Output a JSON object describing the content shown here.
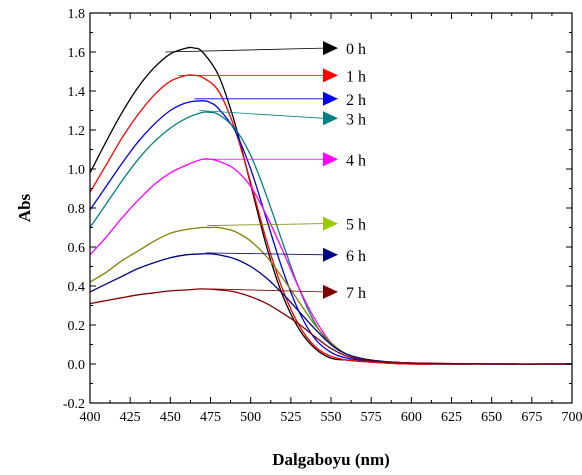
{
  "chart_data": {
    "type": "line",
    "title": "",
    "xlabel": "Dalgaboyu (nm)",
    "ylabel": "Abs",
    "xlim": [
      400,
      700
    ],
    "ylim": [
      -0.2,
      1.8
    ],
    "xticks": [
      "400",
      "425",
      "450",
      "475",
      "500",
      "525",
      "550",
      "575",
      "600",
      "625",
      "650",
      "675",
      "700"
    ],
    "yticks": [
      "-0.2",
      "0.0",
      "0.2",
      "0.4",
      "0.6",
      "0.8",
      "1.0",
      "1.2",
      "1.4",
      "1.6",
      "1.8"
    ],
    "grid": false,
    "series": [
      {
        "name": "0 h",
        "color": "#000000",
        "points": [
          [
            400,
            0.98
          ],
          [
            410,
            1.14
          ],
          [
            420,
            1.29
          ],
          [
            430,
            1.42
          ],
          [
            440,
            1.52
          ],
          [
            450,
            1.59
          ],
          [
            460,
            1.62
          ],
          [
            465,
            1.62
          ],
          [
            470,
            1.6
          ],
          [
            480,
            1.48
          ],
          [
            490,
            1.24
          ],
          [
            500,
            0.92
          ],
          [
            510,
            0.6
          ],
          [
            520,
            0.35
          ],
          [
            530,
            0.18
          ],
          [
            540,
            0.08
          ],
          [
            550,
            0.03
          ],
          [
            560,
            0.02
          ],
          [
            575,
            0.01
          ],
          [
            600,
            0.0
          ],
          [
            650,
            0.0
          ],
          [
            700,
            0.0
          ]
        ],
        "legend_anchor": [
          447,
          1.6
        ]
      },
      {
        "name": "1 h",
        "color": "#ff0000",
        "points": [
          [
            400,
            0.88
          ],
          [
            410,
            1.02
          ],
          [
            420,
            1.16
          ],
          [
            430,
            1.28
          ],
          [
            440,
            1.38
          ],
          [
            450,
            1.45
          ],
          [
            460,
            1.48
          ],
          [
            465,
            1.48
          ],
          [
            470,
            1.47
          ],
          [
            480,
            1.4
          ],
          [
            490,
            1.21
          ],
          [
            500,
            0.93
          ],
          [
            510,
            0.63
          ],
          [
            520,
            0.38
          ],
          [
            530,
            0.2
          ],
          [
            540,
            0.09
          ],
          [
            550,
            0.04
          ],
          [
            560,
            0.02
          ],
          [
            575,
            0.01
          ],
          [
            600,
            0.0
          ],
          [
            650,
            0.0
          ],
          [
            700,
            0.0
          ]
        ],
        "legend_anchor": [
          455,
          1.48
        ]
      },
      {
        "name": "2 h",
        "color": "#0000ee",
        "points": [
          [
            400,
            0.79
          ],
          [
            410,
            0.91
          ],
          [
            420,
            1.03
          ],
          [
            430,
            1.14
          ],
          [
            440,
            1.23
          ],
          [
            450,
            1.3
          ],
          [
            460,
            1.34
          ],
          [
            470,
            1.35
          ],
          [
            475,
            1.34
          ],
          [
            480,
            1.31
          ],
          [
            490,
            1.2
          ],
          [
            500,
            1.0
          ],
          [
            510,
            0.74
          ],
          [
            520,
            0.48
          ],
          [
            530,
            0.27
          ],
          [
            540,
            0.13
          ],
          [
            550,
            0.06
          ],
          [
            560,
            0.03
          ],
          [
            575,
            0.015
          ],
          [
            600,
            0.005
          ],
          [
            650,
            0.0
          ],
          [
            700,
            0.0
          ]
        ],
        "legend_anchor": [
          465,
          1.36
        ]
      },
      {
        "name": "3 h",
        "color": "#008080",
        "points": [
          [
            400,
            0.7
          ],
          [
            410,
            0.82
          ],
          [
            420,
            0.94
          ],
          [
            430,
            1.05
          ],
          [
            440,
            1.14
          ],
          [
            450,
            1.21
          ],
          [
            460,
            1.26
          ],
          [
            470,
            1.29
          ],
          [
            475,
            1.29
          ],
          [
            480,
            1.28
          ],
          [
            490,
            1.21
          ],
          [
            500,
            1.07
          ],
          [
            510,
            0.86
          ],
          [
            520,
            0.62
          ],
          [
            530,
            0.39
          ],
          [
            540,
            0.21
          ],
          [
            550,
            0.1
          ],
          [
            560,
            0.05
          ],
          [
            575,
            0.02
          ],
          [
            600,
            0.005
          ],
          [
            650,
            0.0
          ],
          [
            700,
            0.0
          ]
        ],
        "legend_anchor": [
          468,
          1.3
        ]
      },
      {
        "name": "4 h",
        "color": "#ff00ff",
        "points": [
          [
            400,
            0.56
          ],
          [
            410,
            0.65
          ],
          [
            420,
            0.75
          ],
          [
            430,
            0.84
          ],
          [
            440,
            0.92
          ],
          [
            450,
            0.98
          ],
          [
            460,
            1.02
          ],
          [
            470,
            1.05
          ],
          [
            475,
            1.05
          ],
          [
            480,
            1.04
          ],
          [
            490,
            1.0
          ],
          [
            500,
            0.91
          ],
          [
            510,
            0.76
          ],
          [
            520,
            0.58
          ],
          [
            530,
            0.39
          ],
          [
            540,
            0.23
          ],
          [
            550,
            0.11
          ],
          [
            560,
            0.05
          ],
          [
            575,
            0.02
          ],
          [
            600,
            0.005
          ],
          [
            650,
            0.0
          ],
          [
            700,
            0.0
          ]
        ],
        "legend_anchor": [
          472,
          1.05
        ]
      },
      {
        "name": "5 h",
        "color": "#808000",
        "points": [
          [
            400,
            0.42
          ],
          [
            410,
            0.47
          ],
          [
            420,
            0.53
          ],
          [
            430,
            0.58
          ],
          [
            440,
            0.63
          ],
          [
            450,
            0.67
          ],
          [
            460,
            0.69
          ],
          [
            470,
            0.7
          ],
          [
            475,
            0.7
          ],
          [
            480,
            0.7
          ],
          [
            490,
            0.68
          ],
          [
            500,
            0.63
          ],
          [
            510,
            0.55
          ],
          [
            520,
            0.44
          ],
          [
            530,
            0.32
          ],
          [
            540,
            0.2
          ],
          [
            550,
            0.11
          ],
          [
            560,
            0.05
          ],
          [
            575,
            0.02
          ],
          [
            600,
            0.005
          ],
          [
            650,
            0.0
          ],
          [
            700,
            0.0
          ]
        ],
        "legend_anchor": [
          473,
          0.71
        ]
      },
      {
        "name": "6 h",
        "color": "#000080",
        "points": [
          [
            400,
            0.37
          ],
          [
            410,
            0.41
          ],
          [
            420,
            0.45
          ],
          [
            430,
            0.49
          ],
          [
            440,
            0.52
          ],
          [
            450,
            0.545
          ],
          [
            460,
            0.56
          ],
          [
            470,
            0.565
          ],
          [
            475,
            0.565
          ],
          [
            480,
            0.56
          ],
          [
            490,
            0.54
          ],
          [
            500,
            0.5
          ],
          [
            510,
            0.44
          ],
          [
            520,
            0.36
          ],
          [
            530,
            0.27
          ],
          [
            540,
            0.18
          ],
          [
            550,
            0.1
          ],
          [
            560,
            0.05
          ],
          [
            575,
            0.02
          ],
          [
            600,
            0.005
          ],
          [
            650,
            0.0
          ],
          [
            700,
            0.0
          ]
        ],
        "legend_anchor": [
          472,
          0.57
        ]
      },
      {
        "name": "7 h",
        "color": "#800000",
        "points": [
          [
            400,
            0.31
          ],
          [
            410,
            0.325
          ],
          [
            420,
            0.34
          ],
          [
            430,
            0.355
          ],
          [
            440,
            0.365
          ],
          [
            450,
            0.375
          ],
          [
            460,
            0.38
          ],
          [
            470,
            0.385
          ],
          [
            480,
            0.38
          ],
          [
            490,
            0.37
          ],
          [
            500,
            0.345
          ],
          [
            510,
            0.31
          ],
          [
            520,
            0.26
          ],
          [
            530,
            0.205
          ],
          [
            540,
            0.14
          ],
          [
            550,
            0.08
          ],
          [
            560,
            0.04
          ],
          [
            575,
            0.015
          ],
          [
            600,
            0.005
          ],
          [
            650,
            0.0
          ],
          [
            700,
            0.0
          ]
        ],
        "legend_anchor": [
          475,
          0.385
        ]
      }
    ],
    "legend": {
      "placement": "right-inside",
      "entries": [
        {
          "label": "0 h",
          "color": "#000000",
          "y": 1.62
        },
        {
          "label": "1 h",
          "color": "#ff0000",
          "y": 1.48
        },
        {
          "label": "2 h",
          "color": "#0000ee",
          "y": 1.36
        },
        {
          "label": "3 h",
          "color": "#008080",
          "y": 1.26
        },
        {
          "label": "4 h",
          "color": "#ff00ff",
          "y": 1.05
        },
        {
          "label": "5 h",
          "color": "#99cc00",
          "y": 0.72
        },
        {
          "label": "6 h",
          "color": "#000080",
          "y": 0.56
        },
        {
          "label": "7 h",
          "color": "#800000",
          "y": 0.37
        }
      ]
    }
  }
}
